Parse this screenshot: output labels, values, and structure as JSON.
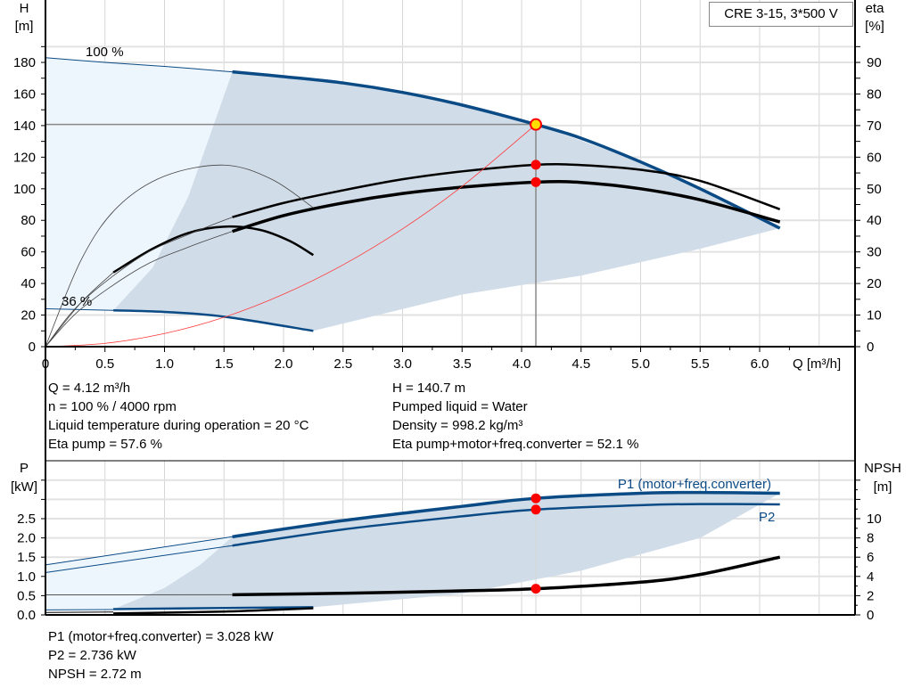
{
  "chart_data": [
    {
      "type": "line",
      "title": "CRE 3-15, 3*500 V",
      "xlabel": "Q [m³/h]",
      "ylabel": "H [m]",
      "y2label": "eta [%]",
      "ylabel_parts": [
        "H",
        "[m]"
      ],
      "y2label_parts": [
        "eta",
        "[%]"
      ],
      "xlim": [
        0,
        6.75
      ],
      "ylim": [
        0,
        200
      ],
      "y2lim": [
        0,
        100
      ],
      "xticks": [
        "0",
        "0.5",
        "1.0",
        "1.5",
        "2.0",
        "2.5",
        "3.0",
        "3.5",
        "4.0",
        "4.5",
        "5.0",
        "5.5",
        "6.0"
      ],
      "xtick_values": [
        0,
        0.5,
        1,
        1.5,
        2,
        2.5,
        3,
        3.5,
        4,
        4.5,
        5,
        5.5,
        6
      ],
      "yticks": [
        0,
        20,
        40,
        60,
        80,
        100,
        120,
        140,
        160,
        180
      ],
      "y2ticks": [
        0,
        10,
        20,
        30,
        40,
        50,
        60,
        70,
        80,
        90
      ],
      "grid": true,
      "annotations": [
        "100 %",
        "36 %"
      ],
      "colors": {
        "head": "#0a4a85",
        "eta": "#000000",
        "system": "#ff3a3a",
        "region_dark": "#d0dce8",
        "region_light": "#eef6fd",
        "duty_point": "#ff0000",
        "duty_point_main": "#ffe000"
      },
      "series": [
        {
          "key": "head_100_thin",
          "points": [
            [
              0,
              183
            ],
            [
              0.5,
              180
            ],
            [
              1.0,
              177.5
            ],
            [
              1.57,
              174
            ]
          ]
        },
        {
          "key": "head_100",
          "points": [
            [
              1.57,
              174
            ],
            [
              2.0,
              171
            ],
            [
              2.5,
              167
            ],
            [
              3.0,
              161
            ],
            [
              3.5,
              153
            ],
            [
              4.12,
              140.7
            ],
            [
              4.5,
              132
            ],
            [
              5.0,
              117
            ],
            [
              5.5,
              100
            ],
            [
              6.17,
              75
            ]
          ]
        },
        {
          "key": "head_36_thin",
          "points": [
            [
              0,
              24
            ],
            [
              0.57,
              23
            ]
          ]
        },
        {
          "key": "head_36",
          "points": [
            [
              0.57,
              23
            ],
            [
              1.0,
              22
            ],
            [
              1.5,
              19
            ],
            [
              2.25,
              10
            ]
          ]
        },
        {
          "key": "eta_pump",
          "points": [
            [
              1.57,
              82
            ],
            [
              2.0,
              91
            ],
            [
              2.5,
              99
            ],
            [
              3.0,
              106
            ],
            [
              3.5,
              111
            ],
            [
              4.12,
              115.2
            ],
            [
              4.5,
              115
            ],
            [
              5.0,
              112
            ],
            [
              5.5,
              105
            ],
            [
              6.17,
              87
            ]
          ]
        },
        {
          "key": "eta_total",
          "points": [
            [
              1.57,
              73
            ],
            [
              2.0,
              83
            ],
            [
              2.5,
              91
            ],
            [
              3.0,
              97
            ],
            [
              3.5,
              101
            ],
            [
              4.12,
              104.2
            ],
            [
              4.5,
              104
            ],
            [
              5.0,
              100
            ],
            [
              5.5,
              93
            ],
            [
              6.17,
              79
            ]
          ]
        },
        {
          "key": "eta_low_total",
          "points": [
            [
              0.57,
              47
            ],
            [
              0.9,
              62
            ],
            [
              1.2,
              72
            ],
            [
              1.5,
              76
            ],
            [
              1.8,
              74
            ],
            [
              2.05,
              67
            ],
            [
              2.25,
              58
            ]
          ]
        },
        {
          "key": "eta_low_pump",
          "points": [
            [
              0,
              0
            ],
            [
              0.3,
              55
            ],
            [
              0.6,
              88
            ],
            [
              1.0,
              108
            ],
            [
              1.5,
              115
            ],
            [
              1.9,
              106
            ],
            [
              2.25,
              88
            ]
          ]
        },
        {
          "key": "eta_thin_1",
          "points": [
            [
              0,
              0
            ],
            [
              0.3,
              28
            ],
            [
              0.8,
              57
            ],
            [
              1.2,
              71
            ],
            [
              1.57,
              82
            ]
          ]
        },
        {
          "key": "eta_thin_2",
          "points": [
            [
              0,
              0
            ],
            [
              0.3,
              24
            ],
            [
              0.8,
              50
            ],
            [
              1.2,
              63
            ],
            [
              1.57,
              73
            ]
          ]
        },
        {
          "key": "eta_thin_3",
          "points": [
            [
              0,
              0
            ],
            [
              0.3,
              28
            ],
            [
              0.57,
              47
            ]
          ]
        },
        {
          "key": "system_curve",
          "points": [
            [
              0,
              0
            ],
            [
              0.5,
              2.1
            ],
            [
              1.0,
              8.3
            ],
            [
              1.5,
              18.6
            ],
            [
              2.0,
              33.2
            ],
            [
              2.5,
              51.8
            ],
            [
              3.0,
              74.6
            ],
            [
              3.5,
              101.5
            ],
            [
              4.12,
              140.7
            ]
          ]
        }
      ],
      "regions": {
        "dark": [
          [
            1.57,
            174
          ],
          [
            2.5,
            167
          ],
          [
            3.5,
            153
          ],
          [
            4.12,
            140.7
          ],
          [
            5.0,
            117
          ],
          [
            6.17,
            75
          ],
          [
            5.5,
            62
          ],
          [
            4.5,
            45
          ],
          [
            3.5,
            33
          ],
          [
            2.25,
            10
          ],
          [
            1.5,
            19
          ],
          [
            0.57,
            23
          ],
          [
            0.9,
            50
          ],
          [
            1.2,
            95
          ],
          [
            1.57,
            174
          ]
        ],
        "light": [
          [
            0,
            183
          ],
          [
            1.57,
            174
          ],
          [
            1.2,
            95
          ],
          [
            0.9,
            50
          ],
          [
            0.57,
            23
          ],
          [
            0,
            24
          ]
        ]
      },
      "duty_points": [
        [
          4.12,
          140.7
        ],
        [
          4.12,
          115.2
        ],
        [
          4.12,
          104.2
        ]
      ],
      "duty_lines": {
        "q": 4.12,
        "h": 140.7
      }
    },
    {
      "type": "line",
      "xlabel": "",
      "ylabel": "P [kW]",
      "y2label": "NPSH [m]",
      "ylabel_parts": [
        "P",
        "[kW]"
      ],
      "y2label_parts": [
        "NPSH",
        "[m]"
      ],
      "xlim": [
        0,
        6.75
      ],
      "ylim": [
        0,
        4
      ],
      "y2lim": [
        0,
        16
      ],
      "yticks": [
        "0.0",
        "0.5",
        "1.0",
        "1.5",
        "2.0",
        "2.5"
      ],
      "ytick_values": [
        0,
        0.5,
        1,
        1.5,
        2,
        2.5
      ],
      "y2ticks": [
        0,
        2,
        4,
        6,
        8,
        10
      ],
      "grid": true,
      "series": [
        {
          "key": "p1_thin",
          "name": "P1 (motor+freq.converter)",
          "points": [
            [
              0,
              1.3
            ],
            [
              1.57,
              2.03
            ]
          ]
        },
        {
          "key": "p1",
          "name": "P1 (motor+freq.converter)",
          "points": [
            [
              1.57,
              2.03
            ],
            [
              2.5,
              2.45
            ],
            [
              3.5,
              2.82
            ],
            [
              4.12,
              3.028
            ],
            [
              5.0,
              3.16
            ],
            [
              5.5,
              3.18
            ],
            [
              6.17,
              3.16
            ]
          ]
        },
        {
          "key": "p2_thin",
          "name": "P2",
          "points": [
            [
              0,
              1.1
            ],
            [
              1.57,
              1.8
            ]
          ]
        },
        {
          "key": "p2",
          "name": "P2",
          "points": [
            [
              1.57,
              1.8
            ],
            [
              2.5,
              2.22
            ],
            [
              3.5,
              2.56
            ],
            [
              4.12,
              2.736
            ],
            [
              5.0,
              2.85
            ],
            [
              5.5,
              2.88
            ],
            [
              6.17,
              2.87
            ]
          ]
        },
        {
          "key": "p_low_thin",
          "points": [
            [
              0,
              0.13
            ],
            [
              0.57,
              0.14
            ]
          ]
        },
        {
          "key": "p_low",
          "points": [
            [
              0.57,
              0.15
            ],
            [
              1.5,
              0.18
            ],
            [
              2.25,
              0.2
            ]
          ]
        },
        {
          "key": "npsh_thin",
          "points": [
            [
              0,
              2.08
            ],
            [
              1.57,
              2.1
            ]
          ],
          "axis": "y2"
        },
        {
          "key": "npsh",
          "points": [
            [
              1.57,
              2.1
            ],
            [
              2.5,
              2.25
            ],
            [
              3.5,
              2.5
            ],
            [
              4.12,
              2.72
            ],
            [
              5.0,
              3.4
            ],
            [
              5.5,
              4.2
            ],
            [
              6.17,
              6.0
            ]
          ],
          "axis": "y2"
        },
        {
          "key": "npsh_low_thin",
          "points": [
            [
              0,
              0.25
            ],
            [
              0.57,
              0.3
            ]
          ],
          "axis": "y2"
        },
        {
          "key": "npsh_low",
          "points": [
            [
              0.57,
              0.15
            ],
            [
              1.5,
              0.35
            ],
            [
              2.25,
              0.7
            ]
          ],
          "axis": "y2"
        }
      ],
      "regions": {
        "dark": [
          [
            1.57,
            2.03
          ],
          [
            2.5,
            2.45
          ],
          [
            3.5,
            2.82
          ],
          [
            4.12,
            3.028
          ],
          [
            5.0,
            3.16
          ],
          [
            6.17,
            3.16
          ],
          [
            5.5,
            2.0
          ],
          [
            4.5,
            1.15
          ],
          [
            3.5,
            0.55
          ],
          [
            2.25,
            0.2
          ],
          [
            0.57,
            0.15
          ],
          [
            1.0,
            0.7
          ],
          [
            1.3,
            1.3
          ],
          [
            1.57,
            2.03
          ]
        ],
        "light": [
          [
            0,
            1.3
          ],
          [
            1.57,
            2.03
          ],
          [
            1.3,
            1.3
          ],
          [
            1.0,
            0.7
          ],
          [
            0.57,
            0.15
          ],
          [
            0,
            0.13
          ]
        ]
      },
      "duty_points": [
        [
          4.12,
          3.028,
          "y"
        ],
        [
          4.12,
          2.736,
          "y"
        ],
        [
          4.12,
          2.72,
          "y2"
        ]
      ]
    }
  ],
  "info_top": {
    "left": [
      "Q = 4.12 m³/h",
      "n = 100 % / 4000 rpm",
      "Liquid temperature during operation = 20 °C",
      "Eta pump = 57.6 %"
    ],
    "right": [
      "H = 140.7 m",
      "Pumped liquid = Water",
      "Density = 998.2 kg/m³",
      "Eta pump+motor+freq.converter = 52.1 %"
    ]
  },
  "info_bottom": [
    "P1 (motor+freq.converter) = 3.028 kW",
    "P2 = 2.736 kW",
    "NPSH = 2.72 m"
  ],
  "labels": {
    "p1": "P1 (motor+freq.converter)",
    "p2": "P2",
    "q_axis": "Q [m³/h]"
  }
}
